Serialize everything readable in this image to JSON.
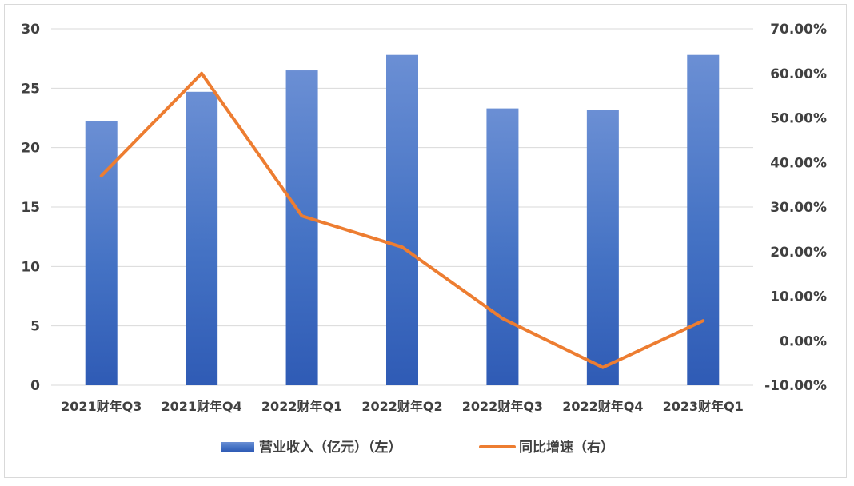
{
  "chart_data": {
    "type": "bar",
    "categories": [
      "2021财年Q3",
      "2021财年Q4",
      "2022财年Q1",
      "2022财年Q2",
      "2022财年Q3",
      "2022财年Q4",
      "2023财年Q1"
    ],
    "series": [
      {
        "name": "营业收入（亿元）（左）",
        "type": "bar",
        "axis": "left",
        "values": [
          22.2,
          24.7,
          26.5,
          27.8,
          23.3,
          23.2,
          27.8
        ],
        "color": "#4472c4"
      },
      {
        "name": "同比增速（右）",
        "type": "line",
        "axis": "right",
        "values": [
          0.37,
          0.6,
          0.28,
          0.21,
          0.05,
          -0.06,
          0.045
        ],
        "color": "#ed7d31"
      }
    ],
    "y_left": {
      "min": 0,
      "max": 30,
      "ticks": [
        "0",
        "5",
        "10",
        "15",
        "20",
        "25",
        "30"
      ]
    },
    "y_right": {
      "min": -0.1,
      "max": 0.7,
      "ticks": [
        "-10.00%",
        "0.00%",
        "10.00%",
        "20.00%",
        "30.00%",
        "40.00%",
        "50.00%",
        "60.00%",
        "70.00%"
      ]
    },
    "grid": true,
    "legend": "bottom"
  }
}
